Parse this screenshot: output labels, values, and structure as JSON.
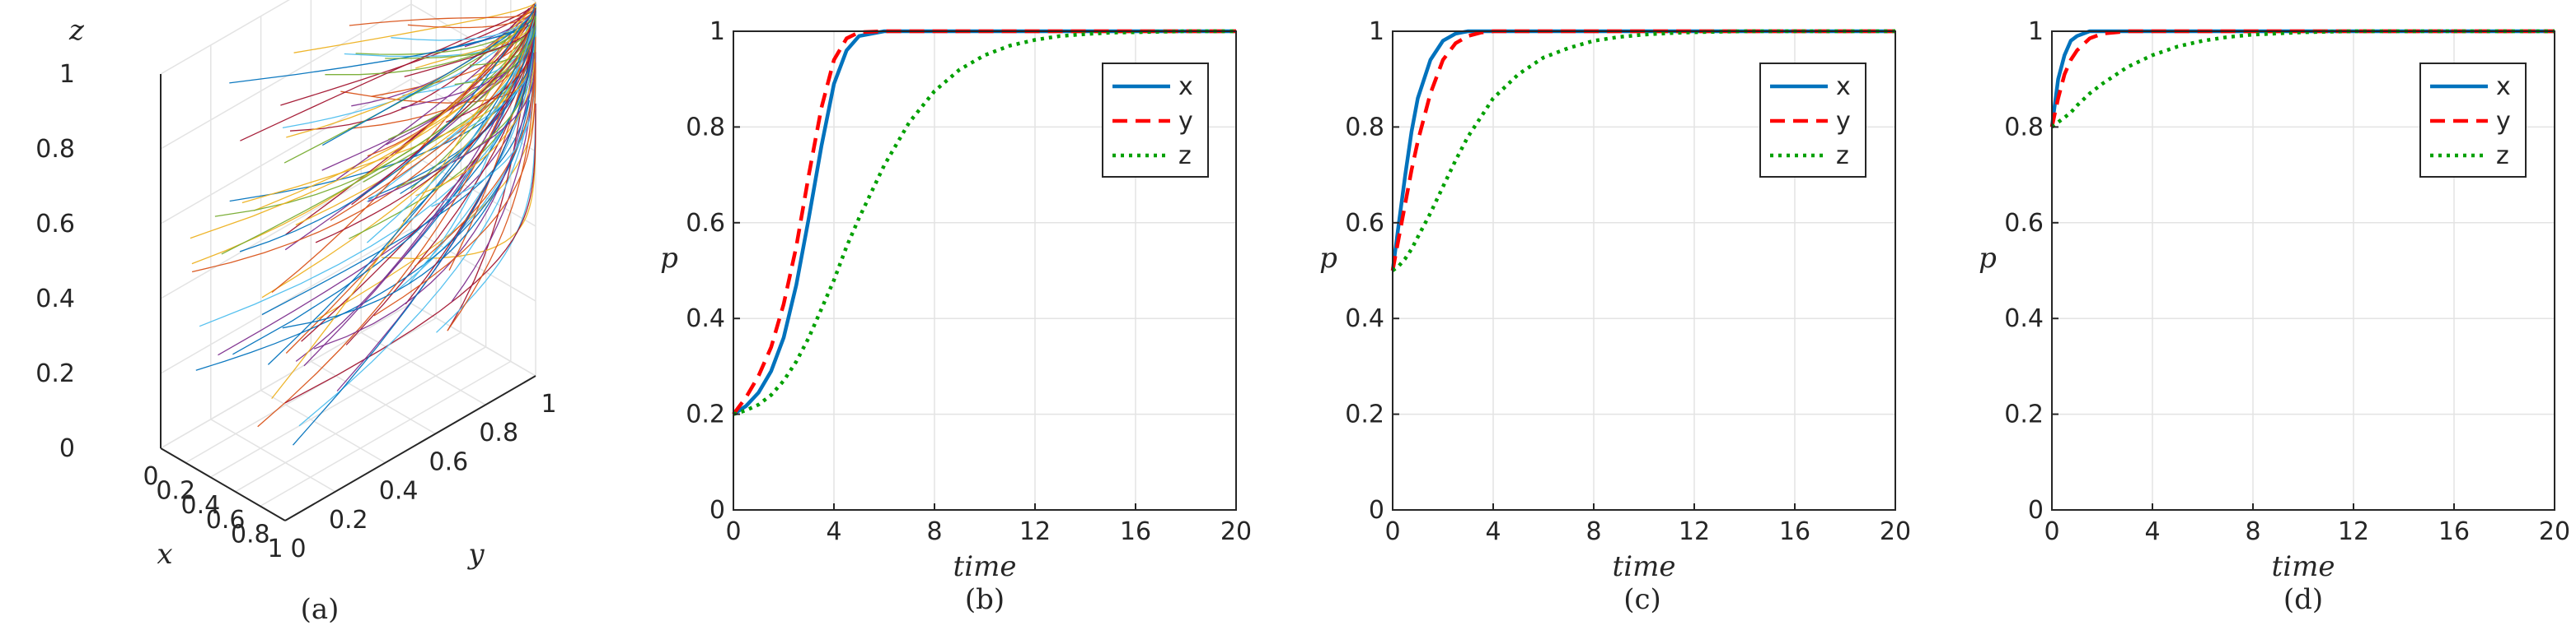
{
  "colors": {
    "x": "#0072BD",
    "y": "#FF0000",
    "z": "#00A000",
    "grid": "#e3e3e3",
    "axis": "#262626"
  },
  "panels": [
    {
      "id": "a",
      "caption": "(a)",
      "chart_data": {
        "type": "line3d",
        "xlabel": "x",
        "ylabel": "y",
        "zlabel": "z",
        "xlim": [
          0,
          1
        ],
        "ylim": [
          0,
          1
        ],
        "zlim": [
          0,
          1
        ],
        "x_ticks": [
          "0",
          "0.2",
          "0.4",
          "0.6",
          "0.8",
          "1"
        ],
        "y_ticks": [
          "0",
          "0.2",
          "0.4",
          "0.6",
          "0.8",
          "1"
        ],
        "z_ticks": [
          "0",
          "0.2",
          "0.4",
          "0.6",
          "0.8",
          "1"
        ],
        "grid": true,
        "trajectory_count": 100,
        "trajectory_end": [
          1,
          1,
          1
        ]
      }
    },
    {
      "id": "b",
      "caption": "(b)",
      "chart_data": {
        "type": "line",
        "xlabel": "time",
        "ylabel": "p",
        "xlim": [
          0,
          20
        ],
        "ylim": [
          0,
          1
        ],
        "x_ticks": [
          "0",
          "4",
          "8",
          "12",
          "16",
          "20"
        ],
        "y_ticks": [
          "0",
          "0.2",
          "0.4",
          "0.6",
          "0.8",
          "1"
        ],
        "grid": true,
        "legend": "top-right",
        "x": [
          0,
          0.5,
          1,
          1.5,
          2,
          2.5,
          3,
          3.5,
          4,
          4.5,
          5,
          6,
          7,
          8,
          9,
          10,
          11,
          12,
          13,
          14,
          15,
          16,
          18,
          20
        ],
        "series": [
          {
            "name": "x",
            "style": "solid",
            "values": [
              0.2,
              0.217,
              0.245,
              0.29,
              0.36,
              0.47,
              0.61,
              0.76,
              0.89,
              0.96,
              0.99,
              1,
              1,
              1,
              1,
              1,
              1,
              1,
              1,
              1,
              1,
              1,
              1,
              1
            ]
          },
          {
            "name": "y",
            "style": "dashed",
            "values": [
              0.2,
              0.235,
              0.28,
              0.34,
              0.43,
              0.55,
              0.7,
              0.84,
              0.94,
              0.985,
              0.998,
              1,
              1,
              1,
              1,
              1,
              1,
              1,
              1,
              1,
              1,
              1,
              1,
              1
            ]
          },
          {
            "name": "z",
            "style": "dotted",
            "values": [
              0.2,
              0.208,
              0.22,
              0.24,
              0.27,
              0.31,
              0.36,
              0.42,
              0.48,
              0.55,
              0.61,
              0.72,
              0.81,
              0.875,
              0.92,
              0.95,
              0.97,
              0.982,
              0.99,
              0.994,
              0.997,
              0.998,
              1,
              1
            ]
          }
        ]
      }
    },
    {
      "id": "c",
      "caption": "(c)",
      "chart_data": {
        "type": "line",
        "xlabel": "time",
        "ylabel": "p",
        "xlim": [
          0,
          20
        ],
        "ylim": [
          0,
          1
        ],
        "x_ticks": [
          "0",
          "4",
          "8",
          "12",
          "16",
          "20"
        ],
        "y_ticks": [
          "0",
          "0.2",
          "0.4",
          "0.6",
          "0.8",
          "1"
        ],
        "grid": true,
        "legend": "top-right",
        "x": [
          0,
          0.25,
          0.5,
          0.75,
          1,
          1.5,
          2,
          2.5,
          3,
          3.5,
          4,
          5,
          6,
          7,
          8,
          9,
          10,
          11,
          12,
          14,
          16,
          20
        ],
        "series": [
          {
            "name": "x",
            "style": "solid",
            "values": [
              0.5,
              0.6,
              0.7,
              0.79,
              0.86,
              0.94,
              0.98,
              0.995,
              1,
              1,
              1,
              1,
              1,
              1,
              1,
              1,
              1,
              1,
              1,
              1,
              1,
              1
            ]
          },
          {
            "name": "y",
            "style": "dashed",
            "values": [
              0.5,
              0.57,
              0.64,
              0.71,
              0.77,
              0.87,
              0.94,
              0.975,
              0.99,
              0.997,
              1,
              1,
              1,
              1,
              1,
              1,
              1,
              1,
              1,
              1,
              1,
              1
            ]
          },
          {
            "name": "z",
            "style": "dotted",
            "values": [
              0.5,
              0.51,
              0.525,
              0.545,
              0.57,
              0.62,
              0.675,
              0.73,
              0.78,
              0.82,
              0.86,
              0.91,
              0.945,
              0.965,
              0.98,
              0.988,
              0.993,
              0.996,
              0.998,
              1,
              1,
              1
            ]
          }
        ]
      }
    },
    {
      "id": "d",
      "caption": "(d)",
      "chart_data": {
        "type": "line",
        "xlabel": "time",
        "ylabel": "p",
        "xlim": [
          0,
          20
        ],
        "ylim": [
          0,
          1
        ],
        "x_ticks": [
          "0",
          "4",
          "8",
          "12",
          "16",
          "20"
        ],
        "y_ticks": [
          "0",
          "0.2",
          "0.4",
          "0.6",
          "0.8",
          "1"
        ],
        "grid": true,
        "legend": "top-right",
        "x": [
          0,
          0.25,
          0.5,
          0.75,
          1,
          1.5,
          2,
          3,
          4,
          5,
          6,
          7,
          8,
          10,
          12,
          16,
          20
        ],
        "series": [
          {
            "name": "x",
            "style": "solid",
            "values": [
              0.8,
              0.9,
              0.95,
              0.98,
              0.99,
              1,
              1,
              1,
              1,
              1,
              1,
              1,
              1,
              1,
              1,
              1,
              1
            ]
          },
          {
            "name": "y",
            "style": "dashed",
            "values": [
              0.8,
              0.86,
              0.91,
              0.94,
              0.96,
              0.985,
              0.995,
              1,
              1,
              1,
              1,
              1,
              1,
              1,
              1,
              1,
              1
            ]
          },
          {
            "name": "z",
            "style": "dotted",
            "values": [
              0.8,
              0.81,
              0.82,
              0.83,
              0.845,
              0.87,
              0.89,
              0.925,
              0.95,
              0.968,
              0.98,
              0.988,
              0.993,
              0.998,
              1,
              1,
              1
            ]
          }
        ]
      }
    }
  ]
}
